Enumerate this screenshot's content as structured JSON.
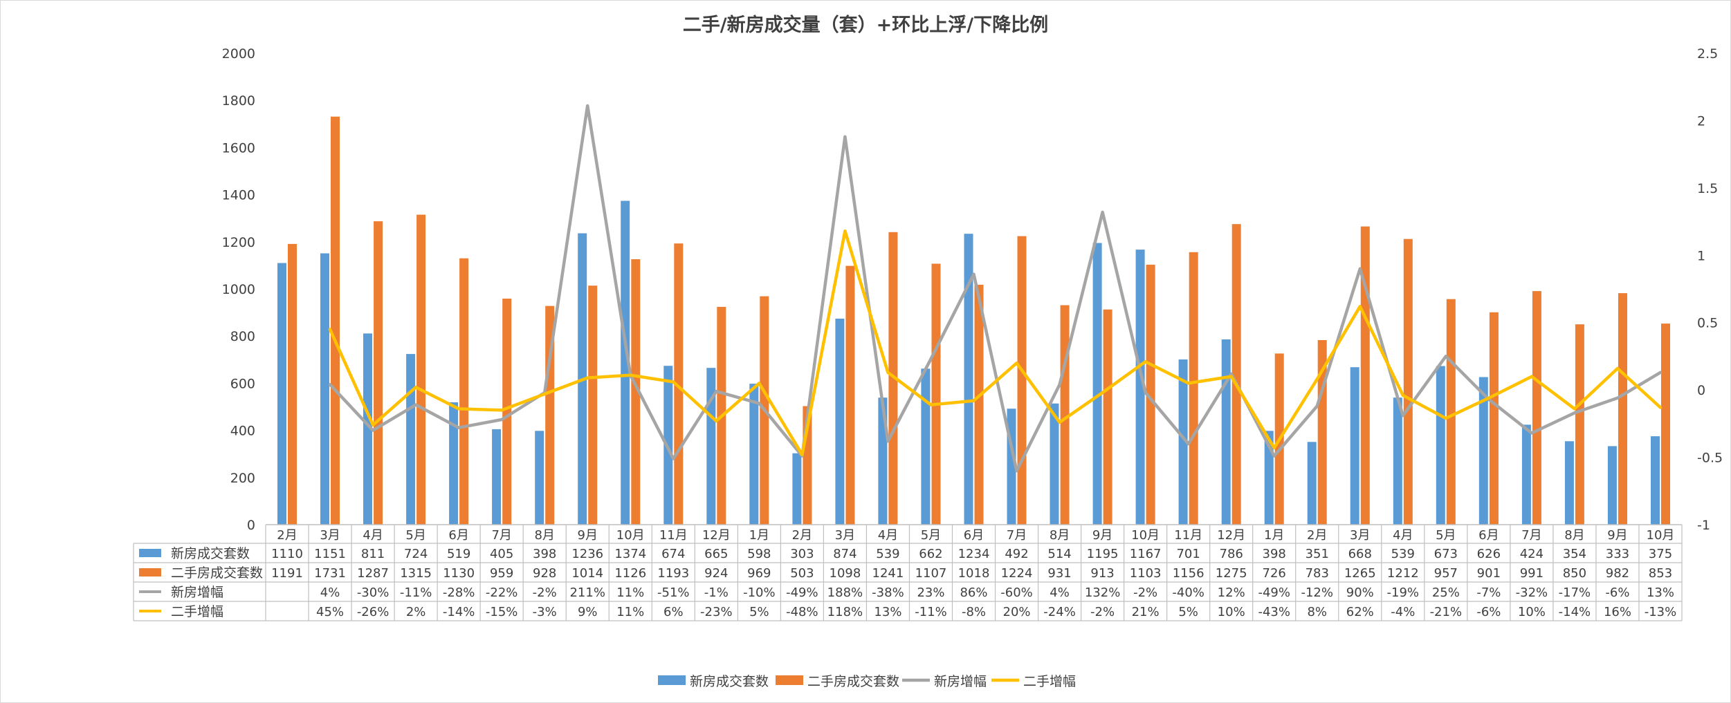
{
  "chart_data": {
    "type": "bar",
    "title": "二手/新房成交量（套）+环比上浮/下降比例",
    "categories": [
      "2月",
      "3月",
      "4月",
      "5月",
      "6月",
      "7月",
      "8月",
      "9月",
      "10月",
      "11月",
      "12月",
      "1月",
      "2月",
      "3月",
      "4月",
      "5月",
      "6月",
      "7月",
      "8月",
      "9月",
      "10月",
      "11月",
      "12月",
      "1月",
      "2月",
      "3月",
      "4月",
      "5月",
      "6月",
      "7月",
      "8月",
      "9月",
      "10月"
    ],
    "y_left": {
      "ticks": [
        "2000",
        "1800",
        "1600",
        "1400",
        "1200",
        "1000",
        "800",
        "600",
        "400",
        "200",
        "0"
      ],
      "ylim": [
        0,
        2000
      ]
    },
    "y_right": {
      "ticks": [
        "2.5",
        "2",
        "1.5",
        "1",
        "0.5",
        "0",
        "-0.5",
        "-1"
      ],
      "ylim": [
        -1,
        2.5
      ]
    },
    "grid": false,
    "legend_position": "bottom",
    "series": [
      {
        "name": "新房成交套数",
        "kind": "bar",
        "axis": "left",
        "color": "#5B9BD5",
        "values": [
          1110,
          1151,
          811,
          724,
          519,
          405,
          398,
          1236,
          1374,
          674,
          665,
          598,
          303,
          874,
          539,
          662,
          1234,
          492,
          514,
          1195,
          1167,
          701,
          786,
          398,
          351,
          668,
          539,
          673,
          626,
          424,
          354,
          333,
          375
        ],
        "labels": [
          "1110",
          "1151",
          "811",
          "724",
          "519",
          "405",
          "398",
          "1236",
          "1374",
          "674",
          "665",
          "598",
          "303",
          "874",
          "539",
          "662",
          "1234",
          "492",
          "514",
          "1195",
          "1167",
          "701",
          "786",
          "398",
          "351",
          "668",
          "539",
          "673",
          "626",
          "424",
          "354",
          "333",
          "375"
        ]
      },
      {
        "name": "二手房成交套数",
        "kind": "bar",
        "axis": "left",
        "color": "#ED7D31",
        "values": [
          1191,
          1731,
          1287,
          1315,
          1130,
          959,
          928,
          1014,
          1126,
          1193,
          924,
          969,
          503,
          1098,
          1241,
          1107,
          1018,
          1224,
          931,
          913,
          1103,
          1156,
          1275,
          726,
          783,
          1265,
          1212,
          957,
          901,
          991,
          850,
          982,
          853
        ],
        "labels": [
          "1191",
          "1731",
          "1287",
          "1315",
          "1130",
          "959",
          "928",
          "1014",
          "1126",
          "1193",
          "924",
          "969",
          "503",
          "1098",
          "1241",
          "1107",
          "1018",
          "1224",
          "931",
          "913",
          "1103",
          "1156",
          "1275",
          "726",
          "783",
          "1265",
          "1212",
          "957",
          "901",
          "991",
          "850",
          "982",
          "853"
        ]
      },
      {
        "name": "新房增幅",
        "kind": "line",
        "axis": "right",
        "color": "#A5A5A5",
        "values": [
          null,
          0.04,
          -0.3,
          -0.11,
          -0.28,
          -0.22,
          -0.02,
          2.11,
          0.11,
          -0.51,
          -0.01,
          -0.1,
          -0.49,
          1.88,
          -0.38,
          0.23,
          0.86,
          -0.6,
          0.04,
          1.32,
          -0.02,
          -0.4,
          0.12,
          -0.49,
          -0.12,
          0.9,
          -0.19,
          0.25,
          -0.07,
          -0.32,
          -0.17,
          -0.06,
          0.13
        ],
        "labels": [
          "",
          "4%",
          "-30%",
          "-11%",
          "-28%",
          "-22%",
          "-2%",
          "211%",
          "11%",
          "-51%",
          "-1%",
          "-10%",
          "-49%",
          "188%",
          "-38%",
          "23%",
          "86%",
          "-60%",
          "4%",
          "132%",
          "-2%",
          "-40%",
          "12%",
          "-49%",
          "-12%",
          "90%",
          "-19%",
          "25%",
          "-7%",
          "-32%",
          "-17%",
          "-6%",
          "13%"
        ]
      },
      {
        "name": "二手增幅",
        "kind": "line",
        "axis": "right",
        "color": "#FFC000",
        "values": [
          null,
          0.45,
          -0.26,
          0.02,
          -0.14,
          -0.15,
          -0.03,
          0.09,
          0.11,
          0.06,
          -0.23,
          0.05,
          -0.48,
          1.18,
          0.13,
          -0.11,
          -0.08,
          0.2,
          -0.24,
          -0.02,
          0.21,
          0.05,
          0.1,
          -0.43,
          0.08,
          0.62,
          -0.04,
          -0.21,
          -0.06,
          0.1,
          -0.14,
          0.16,
          -0.13
        ],
        "labels": [
          "",
          "45%",
          "-26%",
          "2%",
          "-14%",
          "-15%",
          "-3%",
          "9%",
          "11%",
          "6%",
          "-23%",
          "5%",
          "-48%",
          "118%",
          "13%",
          "-11%",
          "-8%",
          "20%",
          "-24%",
          "-2%",
          "21%",
          "5%",
          "10%",
          "-43%",
          "8%",
          "62%",
          "-4%",
          "-21%",
          "-6%",
          "10%",
          "-14%",
          "16%",
          "-13%"
        ]
      }
    ]
  }
}
